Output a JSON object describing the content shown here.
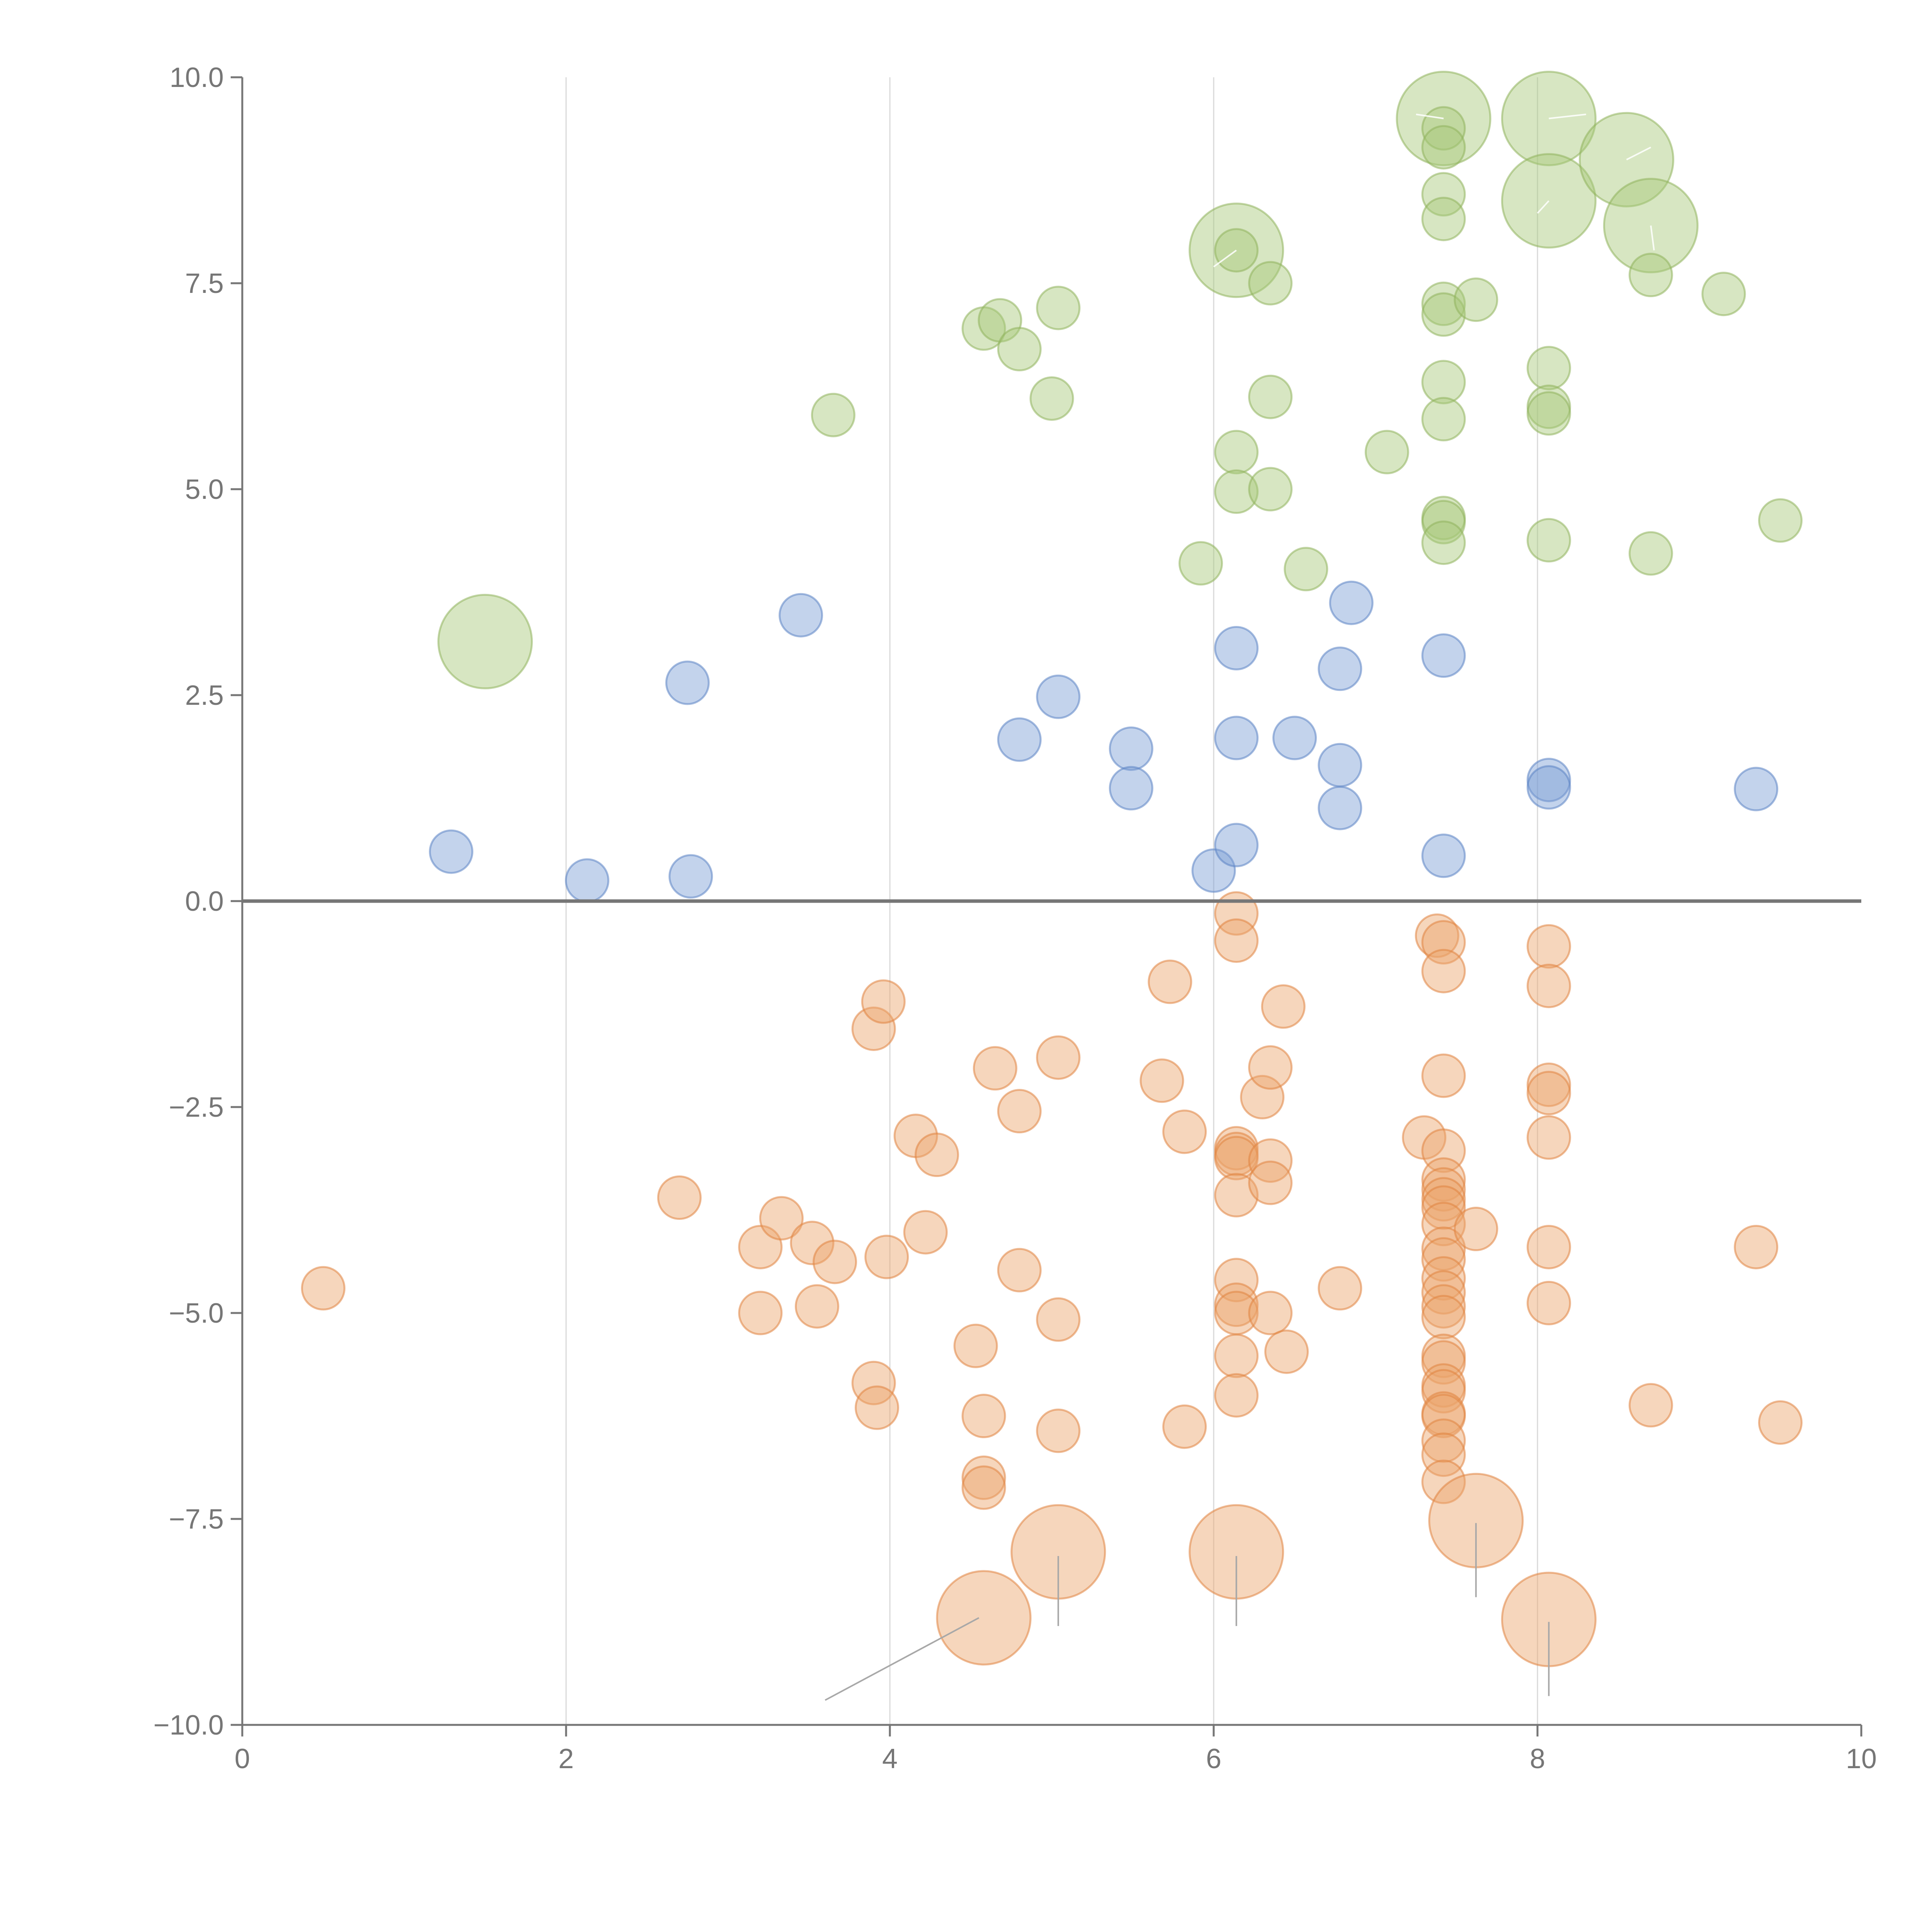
{
  "chart_data": {
    "type": "scatter",
    "title": "",
    "xlabel": "",
    "ylabel": "",
    "xlim": [
      0,
      10
    ],
    "ylim": [
      -10,
      10
    ],
    "x_ticks": [
      0,
      2,
      4,
      6,
      8,
      10
    ],
    "y_ticks": [
      10,
      7.5,
      5,
      2.5,
      0,
      -2.5,
      -5,
      -7.5,
      -10
    ],
    "x_tick_labels": [
      "0",
      "2",
      "4",
      "6",
      "8",
      "10"
    ],
    "y_tick_labels": [
      "10.0",
      "7.5",
      "5.0",
      "2.5",
      "0.0",
      "−2.5",
      "−5.0",
      "−7.5",
      "−10.0"
    ],
    "grid": "vertical",
    "reference_line_y": 0,
    "colors": {
      "green_fill": "#a6c878",
      "green_stroke": "#8fb35c",
      "blue_fill": "#7a9ed4",
      "blue_stroke": "#5b84c4",
      "orange_fill": "#eca36a",
      "orange_stroke": "#e0843f",
      "axis": "#767676",
      "grid": "#d9d9d9"
    },
    "series": [
      {
        "name": "green",
        "points": [
          [
            1.5,
            3.15,
            2.2
          ],
          [
            3.65,
            5.9,
            1
          ],
          [
            4.58,
            6.95,
            1
          ],
          [
            4.68,
            7.05,
            1
          ],
          [
            4.8,
            6.7,
            1
          ],
          [
            5.04,
            7.2,
            1
          ],
          [
            5.0,
            6.1,
            1
          ],
          [
            5.92,
            4.1,
            1
          ],
          [
            6.14,
            7.9,
            2.2
          ],
          [
            6.14,
            7.9,
            1
          ],
          [
            6.14,
            5.45,
            1
          ],
          [
            6.14,
            4.97,
            1
          ],
          [
            6.35,
            7.5,
            1
          ],
          [
            6.35,
            6.12,
            1
          ],
          [
            6.35,
            5.0,
            1
          ],
          [
            6.57,
            4.03,
            1
          ],
          [
            7.07,
            5.45,
            1
          ],
          [
            7.42,
            9.5,
            2.2
          ],
          [
            7.42,
            9.38,
            1
          ],
          [
            7.42,
            9.15,
            1
          ],
          [
            7.42,
            8.58,
            1
          ],
          [
            7.42,
            8.28,
            1
          ],
          [
            7.42,
            7.25,
            1
          ],
          [
            7.42,
            7.12,
            1
          ],
          [
            7.42,
            6.3,
            1
          ],
          [
            7.42,
            5.85,
            1
          ],
          [
            7.42,
            4.65,
            1
          ],
          [
            7.42,
            4.6,
            1
          ],
          [
            7.42,
            4.35,
            1
          ],
          [
            7.62,
            7.3,
            1
          ],
          [
            8.07,
            9.5,
            2.2
          ],
          [
            8.07,
            8.5,
            2.2
          ],
          [
            8.07,
            6.47,
            1
          ],
          [
            8.07,
            6.0,
            1
          ],
          [
            8.07,
            5.92,
            1
          ],
          [
            8.07,
            4.38,
            1
          ],
          [
            8.55,
            9.0,
            2.2
          ],
          [
            8.7,
            8.2,
            2.2
          ],
          [
            8.7,
            7.6,
            1
          ],
          [
            8.7,
            4.22,
            1
          ],
          [
            9.15,
            7.37,
            1
          ],
          [
            9.5,
            4.62,
            1
          ]
        ]
      },
      {
        "name": "blue",
        "points": [
          [
            1.29,
            0.6,
            1
          ],
          [
            2.13,
            0.25,
            1
          ],
          [
            2.75,
            2.65,
            1
          ],
          [
            2.77,
            0.3,
            1
          ],
          [
            3.45,
            3.47,
            1
          ],
          [
            4.8,
            1.96,
            1
          ],
          [
            5.04,
            2.48,
            1
          ],
          [
            5.49,
            1.85,
            1
          ],
          [
            5.49,
            1.37,
            1
          ],
          [
            6.0,
            0.37,
            1
          ],
          [
            6.14,
            3.07,
            1
          ],
          [
            6.14,
            1.98,
            1
          ],
          [
            6.14,
            0.68,
            1
          ],
          [
            6.5,
            1.98,
            1
          ],
          [
            6.78,
            2.82,
            1
          ],
          [
            6.78,
            1.65,
            1
          ],
          [
            6.78,
            1.13,
            1
          ],
          [
            6.85,
            3.62,
            1
          ],
          [
            7.42,
            2.98,
            1
          ],
          [
            7.42,
            0.55,
            1
          ],
          [
            8.07,
            1.47,
            1
          ],
          [
            8.07,
            1.38,
            1
          ],
          [
            9.35,
            1.36,
            1
          ]
        ]
      },
      {
        "name": "orange",
        "points": [
          [
            0.5,
            -4.7,
            1
          ],
          [
            2.7,
            -3.6,
            1
          ],
          [
            3.2,
            -4.2,
            1
          ],
          [
            3.2,
            -5.0,
            1
          ],
          [
            3.33,
            -3.85,
            1
          ],
          [
            3.52,
            -4.15,
            1
          ],
          [
            3.55,
            -4.92,
            1
          ],
          [
            3.66,
            -4.38,
            1
          ],
          [
            3.9,
            -1.55,
            1
          ],
          [
            3.9,
            -5.85,
            1
          ],
          [
            3.92,
            -6.15,
            1
          ],
          [
            3.96,
            -1.22,
            1
          ],
          [
            3.98,
            -4.32,
            1
          ],
          [
            4.16,
            -2.85,
            1
          ],
          [
            4.22,
            -4.02,
            1
          ],
          [
            4.29,
            -3.08,
            1
          ],
          [
            4.53,
            -5.4,
            1
          ],
          [
            4.58,
            -6.25,
            1
          ],
          [
            4.58,
            -7.0,
            1
          ],
          [
            4.58,
            -7.12,
            1
          ],
          [
            4.58,
            -8.7,
            2.2
          ],
          [
            4.65,
            -2.03,
            1
          ],
          [
            4.8,
            -2.55,
            1
          ],
          [
            4.8,
            -4.48,
            1
          ],
          [
            5.04,
            -1.9,
            1
          ],
          [
            5.04,
            -5.08,
            1
          ],
          [
            5.04,
            -6.43,
            1
          ],
          [
            5.04,
            -7.9,
            2.2
          ],
          [
            5.68,
            -2.18,
            1
          ],
          [
            5.73,
            -0.98,
            1
          ],
          [
            5.82,
            -2.8,
            1
          ],
          [
            5.82,
            -6.38,
            1
          ],
          [
            6.14,
            -0.15,
            1
          ],
          [
            6.14,
            -0.48,
            1
          ],
          [
            6.14,
            -3.0,
            1
          ],
          [
            6.14,
            -3.07,
            1
          ],
          [
            6.14,
            -3.12,
            1
          ],
          [
            6.14,
            -3.57,
            1
          ],
          [
            6.14,
            -4.6,
            1
          ],
          [
            6.14,
            -4.9,
            1
          ],
          [
            6.14,
            -5.0,
            1
          ],
          [
            6.14,
            -5.52,
            1
          ],
          [
            6.14,
            -6.0,
            1
          ],
          [
            6.14,
            -7.9,
            2.2
          ],
          [
            6.3,
            -2.38,
            1
          ],
          [
            6.35,
            -2.02,
            1
          ],
          [
            6.35,
            -3.15,
            1
          ],
          [
            6.35,
            -3.42,
            1
          ],
          [
            6.35,
            -5.0,
            1
          ],
          [
            6.43,
            -1.28,
            1
          ],
          [
            6.45,
            -5.47,
            1
          ],
          [
            6.78,
            -4.7,
            1
          ],
          [
            7.3,
            -2.87,
            1
          ],
          [
            7.38,
            -0.42,
            1
          ],
          [
            7.42,
            -0.5,
            1
          ],
          [
            7.42,
            -0.85,
            1
          ],
          [
            7.42,
            -2.12,
            1
          ],
          [
            7.42,
            -3.03,
            1
          ],
          [
            7.42,
            -3.38,
            1
          ],
          [
            7.42,
            -3.5,
            1
          ],
          [
            7.42,
            -3.62,
            1
          ],
          [
            7.42,
            -3.72,
            1
          ],
          [
            7.42,
            -3.92,
            1
          ],
          [
            7.42,
            -4.22,
            1
          ],
          [
            7.42,
            -4.35,
            1
          ],
          [
            7.42,
            -4.58,
            1
          ],
          [
            7.42,
            -4.75,
            1
          ],
          [
            7.42,
            -4.92,
            1
          ],
          [
            7.42,
            -5.05,
            1
          ],
          [
            7.42,
            -5.52,
            1
          ],
          [
            7.42,
            -5.6,
            1
          ],
          [
            7.42,
            -5.88,
            1
          ],
          [
            7.42,
            -5.95,
            1
          ],
          [
            7.42,
            -6.22,
            1
          ],
          [
            7.42,
            -6.25,
            1
          ],
          [
            7.42,
            -6.55,
            1
          ],
          [
            7.42,
            -6.72,
            1
          ],
          [
            7.42,
            -7.05,
            1
          ],
          [
            7.62,
            -3.98,
            1
          ],
          [
            7.62,
            -7.52,
            2.2
          ],
          [
            8.07,
            -0.55,
            1
          ],
          [
            8.07,
            -1.03,
            1
          ],
          [
            8.07,
            -2.23,
            1
          ],
          [
            8.07,
            -2.33,
            1
          ],
          [
            8.07,
            -2.87,
            1
          ],
          [
            8.07,
            -4.2,
            1
          ],
          [
            8.07,
            -4.88,
            1
          ],
          [
            8.07,
            -8.72,
            2.2
          ],
          [
            8.7,
            -6.12,
            1
          ],
          [
            9.35,
            -4.2,
            1
          ],
          [
            9.5,
            -6.33,
            1
          ]
        ]
      }
    ],
    "leader_lines": [
      {
        "from": [
          4.55,
          -8.7
        ],
        "to": [
          3.6,
          -9.7
        ]
      },
      {
        "from": [
          5.04,
          -7.95
        ],
        "to": [
          5.04,
          -8.8
        ]
      },
      {
        "from": [
          6.14,
          -7.95
        ],
        "to": [
          6.14,
          -8.8
        ]
      },
      {
        "from": [
          7.62,
          -7.55
        ],
        "to": [
          7.62,
          -8.45
        ]
      },
      {
        "from": [
          8.07,
          -8.75
        ],
        "to": [
          8.07,
          -9.65
        ]
      }
    ],
    "bubble_label_lines": [
      {
        "from": [
          6.14,
          7.9
        ],
        "to": [
          6.0,
          7.7
        ]
      },
      {
        "from": [
          7.42,
          9.5
        ],
        "to": [
          7.25,
          9.55
        ]
      },
      {
        "from": [
          8.07,
          9.5
        ],
        "to": [
          8.3,
          9.55
        ]
      },
      {
        "from": [
          8.07,
          8.5
        ],
        "to": [
          8.0,
          8.35
        ]
      },
      {
        "from": [
          8.55,
          9.0
        ],
        "to": [
          8.7,
          9.15
        ]
      },
      {
        "from": [
          8.7,
          8.2
        ],
        "to": [
          8.72,
          7.9
        ]
      }
    ]
  }
}
